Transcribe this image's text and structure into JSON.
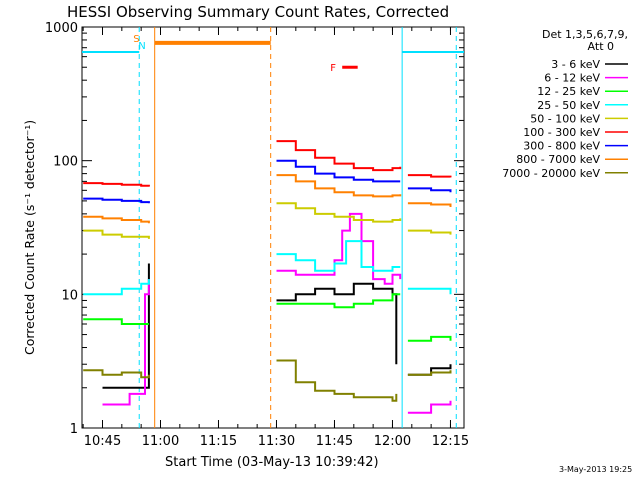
{
  "chart_data": {
    "type": "line",
    "title": "HESSI Observing Summary Count Rates, Corrected",
    "xlabel": "Start Time (03-May-13 10:39:42)",
    "ylabel": "Corrected Count Rate (s⁻¹ detector⁻¹)",
    "y_scale": "log",
    "ylim": [
      1,
      1000
    ],
    "xlim": [
      "10:39:42",
      "12:18:30"
    ],
    "x_ticks": [
      "10:45",
      "11:00",
      "11:15",
      "11:30",
      "11:45",
      "12:00",
      "12:15"
    ],
    "y_ticks": [
      "1",
      "10",
      "100",
      "1000"
    ],
    "legend_title": [
      "Det 1,3,5,6,7,9,",
      "Att 0"
    ],
    "legend_position": "right",
    "footer_date": "3-May-2013 19:25",
    "flags": {
      "S": "S",
      "N": "N",
      "F": "F"
    },
    "colors": {
      "S": "#ff8000",
      "N": "#00e0ff",
      "F": "#ff0000",
      "saa_bar": "#ff8000",
      "night_line": "#00e0ff",
      "day_line": "#ff8000"
    },
    "series": [
      {
        "name": "3 - 6 keV",
        "color": "#000000",
        "segments": [
          {
            "x": [
              "10:45",
              "10:55",
              "10:57"
            ],
            "y": [
              2.0,
              2.0,
              17
            ]
          },
          {
            "x": [
              "11:30",
              "11:35",
              "11:40",
              "11:45",
              "11:50",
              "11:55",
              "12:00",
              "12:01"
            ],
            "y": [
              9,
              10,
              11,
              10,
              12,
              11,
              10,
              3
            ]
          },
          {
            "x": [
              "12:04",
              "12:10",
              "12:15"
            ],
            "y": [
              2.5,
              2.8,
              3.0
            ]
          }
        ]
      },
      {
        "name": "6 - 12 keV",
        "color": "#ff00ff",
        "segments": [
          {
            "x": [
              "10:45",
              "10:52",
              "10:56",
              "10:57"
            ],
            "y": [
              1.5,
              1.8,
              10,
              13
            ]
          },
          {
            "x": [
              "11:30",
              "11:35",
              "11:40",
              "11:45",
              "11:47",
              "11:49",
              "11:52",
              "11:55",
              "11:58",
              "12:00",
              "12:02"
            ],
            "y": [
              15,
              14,
              14,
              18,
              30,
              40,
              25,
              13,
              12,
              14,
              13
            ]
          },
          {
            "x": [
              "12:04",
              "12:10",
              "12:15"
            ],
            "y": [
              1.3,
              1.5,
              1.6
            ]
          }
        ]
      },
      {
        "name": "12 - 25 keV",
        "color": "#00ff00",
        "segments": [
          {
            "x": [
              "10:40",
              "10:50",
              "10:57"
            ],
            "y": [
              6.5,
              6,
              6
            ]
          },
          {
            "x": [
              "11:30",
              "11:35",
              "11:40",
              "11:45",
              "11:50",
              "11:55",
              "12:00",
              "12:02"
            ],
            "y": [
              8.5,
              8.5,
              8.5,
              8,
              8.5,
              9,
              10,
              10
            ]
          },
          {
            "x": [
              "12:04",
              "12:10",
              "12:15"
            ],
            "y": [
              4.5,
              4.8,
              4.5
            ]
          }
        ]
      },
      {
        "name": "25 - 50 keV",
        "color": "#00ffff",
        "segments": [
          {
            "x": [
              "10:40",
              "10:45",
              "10:50",
              "10:55",
              "10:57"
            ],
            "y": [
              10,
              10,
              11,
              12,
              13
            ]
          },
          {
            "x": [
              "11:30",
              "11:35",
              "11:40",
              "11:45",
              "11:48",
              "11:52",
              "11:55",
              "12:00",
              "12:02"
            ],
            "y": [
              20,
              18,
              15,
              17,
              25,
              16,
              15,
              16,
              16
            ]
          },
          {
            "x": [
              "12:04",
              "12:10",
              "12:15"
            ],
            "y": [
              11,
              11,
              10
            ]
          }
        ]
      },
      {
        "name": "50 - 100 keV",
        "color": "#cccc00",
        "segments": [
          {
            "x": [
              "10:40",
              "10:45",
              "10:50",
              "10:55",
              "10:57"
            ],
            "y": [
              30,
              28,
              27,
              27,
              26
            ]
          },
          {
            "x": [
              "11:30",
              "11:35",
              "11:40",
              "11:45",
              "11:50",
              "11:55",
              "12:00",
              "12:02"
            ],
            "y": [
              48,
              44,
              40,
              38,
              36,
              35,
              36,
              37
            ]
          },
          {
            "x": [
              "12:04",
              "12:10",
              "12:15"
            ],
            "y": [
              30,
              29,
              28
            ]
          }
        ]
      },
      {
        "name": "100 - 300 keV",
        "color": "#ff0000",
        "segments": [
          {
            "x": [
              "10:40",
              "10:45",
              "10:50",
              "10:55",
              "10:57"
            ],
            "y": [
              68,
              67,
              66,
              65,
              64
            ]
          },
          {
            "x": [
              "11:30",
              "11:35",
              "11:40",
              "11:45",
              "11:50",
              "11:55",
              "12:00",
              "12:02"
            ],
            "y": [
              140,
              120,
              105,
              95,
              88,
              85,
              88,
              90
            ]
          },
          {
            "x": [
              "12:04",
              "12:10",
              "12:15"
            ],
            "y": [
              78,
              76,
              75
            ]
          }
        ]
      },
      {
        "name": "300 - 800 keV",
        "color": "#0000ff",
        "segments": [
          {
            "x": [
              "10:40",
              "10:45",
              "10:50",
              "10:55",
              "10:57"
            ],
            "y": [
              52,
              51,
              50,
              49,
              48
            ]
          },
          {
            "x": [
              "11:30",
              "11:35",
              "11:40",
              "11:45",
              "11:50",
              "11:55",
              "12:00",
              "12:02"
            ],
            "y": [
              100,
              90,
              80,
              75,
              72,
              70,
              70,
              70
            ]
          },
          {
            "x": [
              "12:04",
              "12:10",
              "12:15"
            ],
            "y": [
              62,
              60,
              58
            ]
          }
        ]
      },
      {
        "name": "800 - 7000 keV",
        "color": "#ff8000",
        "segments": [
          {
            "x": [
              "10:40",
              "10:45",
              "10:50",
              "10:55",
              "10:57"
            ],
            "y": [
              38,
              37,
              36,
              35,
              34
            ]
          },
          {
            "x": [
              "11:30",
              "11:35",
              "11:40",
              "11:45",
              "11:50",
              "11:55",
              "12:00",
              "12:02"
            ],
            "y": [
              78,
              70,
              62,
              58,
              55,
              54,
              55,
              56
            ]
          },
          {
            "x": [
              "12:04",
              "12:10",
              "12:15"
            ],
            "y": [
              48,
              47,
              45
            ]
          }
        ]
      },
      {
        "name": "7000 - 20000 keV",
        "color": "#808000",
        "segments": [
          {
            "x": [
              "10:40",
              "10:45",
              "10:50",
              "10:55",
              "10:57"
            ],
            "y": [
              2.7,
              2.5,
              2.6,
              2.4,
              2.5
            ]
          },
          {
            "x": [
              "11:30",
              "11:35",
              "11:40",
              "11:45",
              "11:50",
              "11:55",
              "12:00",
              "12:01"
            ],
            "y": [
              3.2,
              2.2,
              1.9,
              1.8,
              1.7,
              1.7,
              1.6,
              1.8
            ]
          },
          {
            "x": [
              "12:04",
              "12:10",
              "12:15"
            ],
            "y": [
              2.5,
              2.6,
              2.7
            ]
          }
        ]
      }
    ],
    "night_intervals": [
      [
        "10:39:42",
        "10:54:30"
      ],
      [
        "12:02:30",
        "12:18:30"
      ]
    ],
    "saa_interval": [
      "10:58:30",
      "11:28:30"
    ],
    "flare_interval": [
      "11:47:00",
      "11:51:00"
    ],
    "vlines": {
      "night_end_1": "10:54:30",
      "saa_start": "10:58:30",
      "saa_end": "11:28:30",
      "night_start_2": "12:02:30",
      "end_dashed": "12:16:30"
    }
  }
}
